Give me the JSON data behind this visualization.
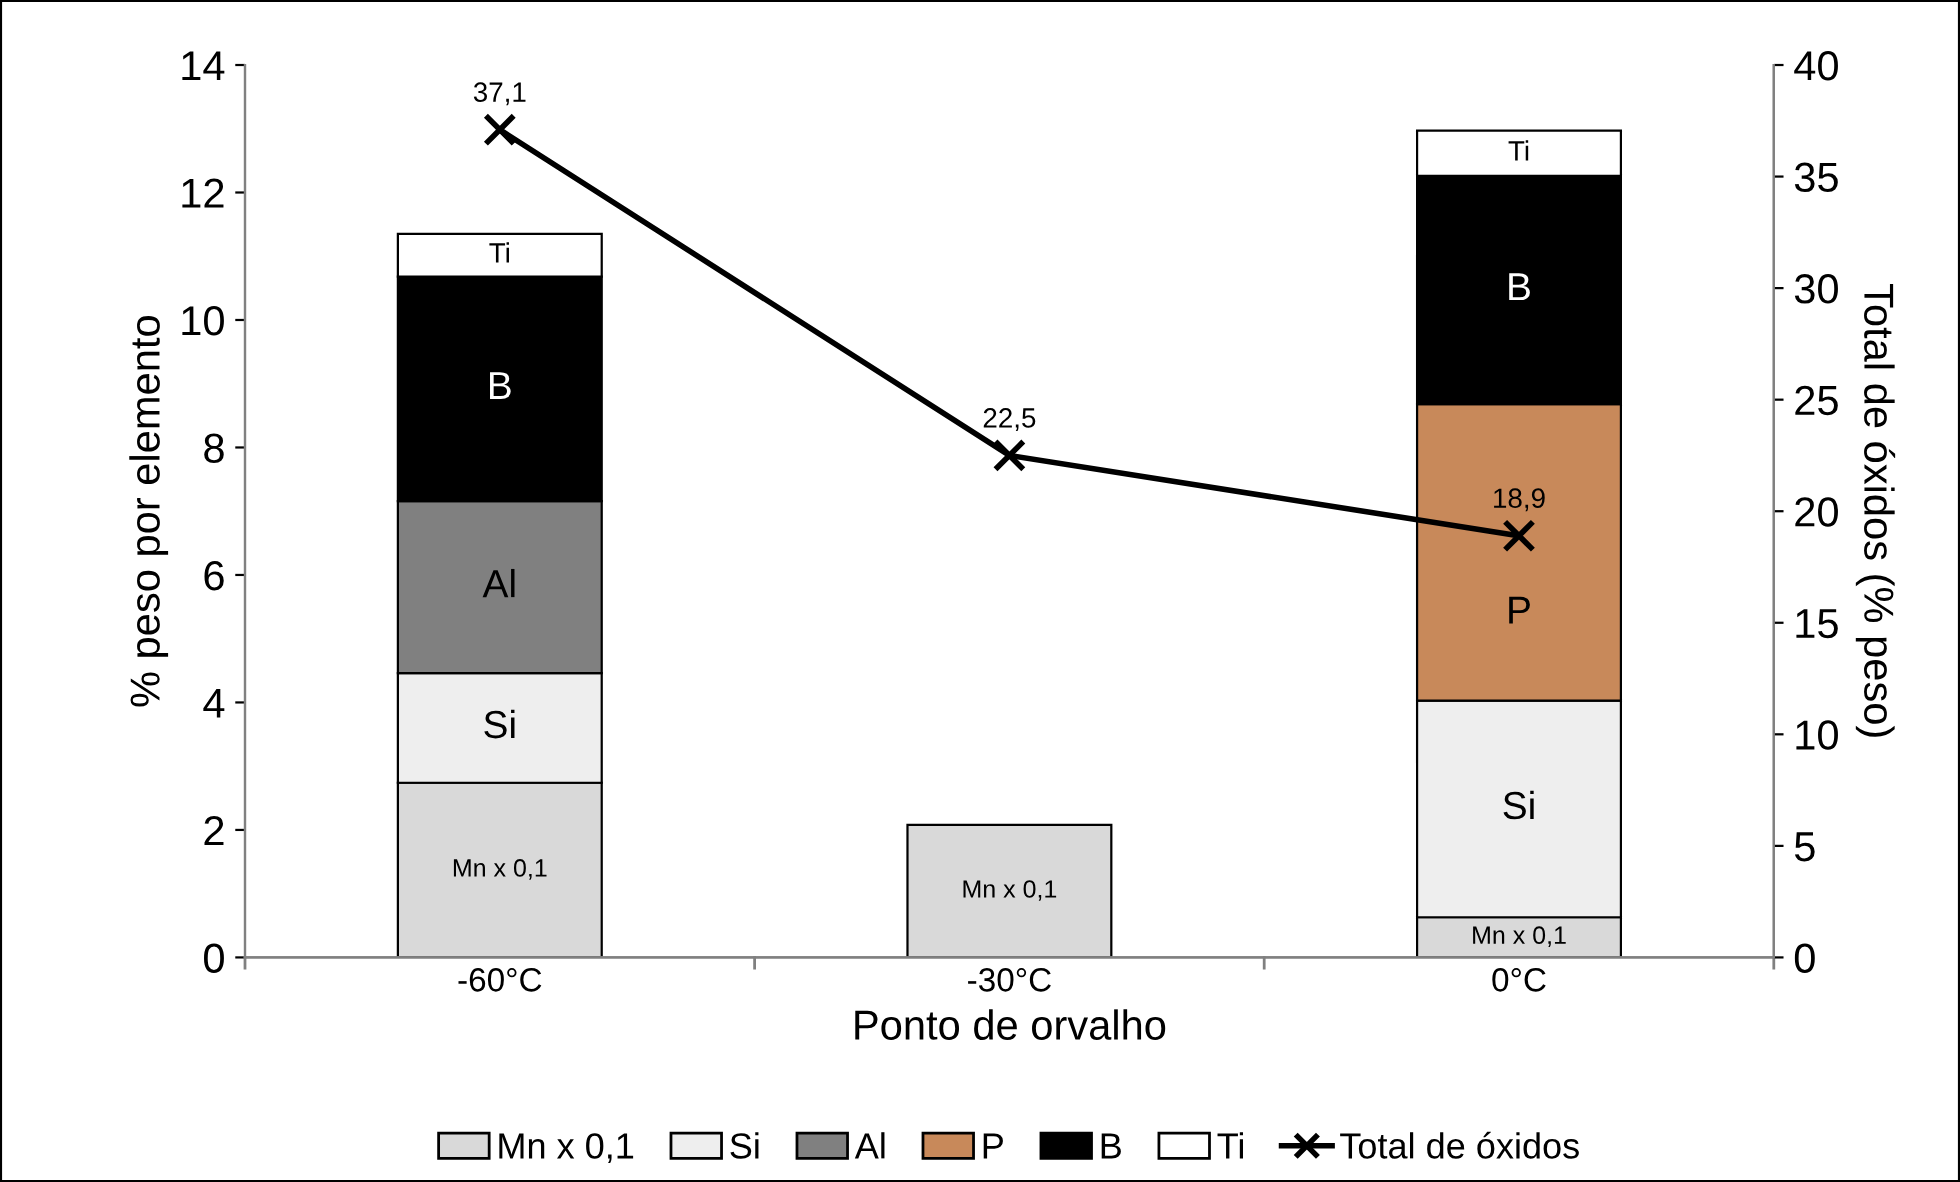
{
  "chart_data": {
    "type": "bar",
    "stacked": true,
    "xlabel": "Ponto de orvalho",
    "ylabel": "% peso por elemento",
    "y2label": "Total de óxidos (% peso)",
    "categories": [
      "-60°C",
      "-30°C",
      "0°C"
    ],
    "series": [
      {
        "name": "Mn x 0,1",
        "color": "#d9d9d9",
        "values": [
          2.74,
          2.08,
          0.63
        ],
        "value_labels": [
          "Mn x 0,1",
          "Mn x 0,1",
          "Mn x 0,1"
        ]
      },
      {
        "name": "Si",
        "color": "#eeeeee",
        "values": [
          1.72,
          null,
          3.4
        ],
        "value_labels": [
          "Si",
          null,
          "Si"
        ]
      },
      {
        "name": "Al",
        "color": "#808080",
        "values": [
          2.7,
          null,
          null
        ],
        "value_labels": [
          "Al",
          null,
          null
        ]
      },
      {
        "name": "P",
        "color": "#c8895a",
        "values": [
          null,
          null,
          4.65
        ],
        "value_labels": [
          null,
          null,
          "P"
        ]
      },
      {
        "name": "B",
        "color": "#000000",
        "values": [
          3.52,
          null,
          3.58
        ],
        "value_labels": [
          "B",
          null,
          "B"
        ]
      },
      {
        "name": "Ti",
        "color": "#ffffff",
        "values": [
          0.67,
          null,
          0.71
        ],
        "value_labels": [
          "Ti",
          null,
          "Ti"
        ]
      },
      {
        "name": "Total de óxidos",
        "type": "line",
        "axis": "y2",
        "color": "#000000",
        "marker": "cross",
        "line_style": "solid",
        "value_labels": [
          "37,1",
          "22,5",
          "18,9"
        ],
        "values": [
          37.1,
          22.5,
          18.9
        ]
      }
    ],
    "ylim": [
      0,
      14
    ],
    "yticks": [
      0,
      2,
      4,
      6,
      8,
      10,
      12,
      14
    ],
    "y2lim": [
      0,
      40
    ],
    "y2ticks": [
      0,
      5,
      10,
      15,
      20,
      25,
      30,
      35,
      40
    ],
    "grid": false,
    "legend": "bottom"
  }
}
